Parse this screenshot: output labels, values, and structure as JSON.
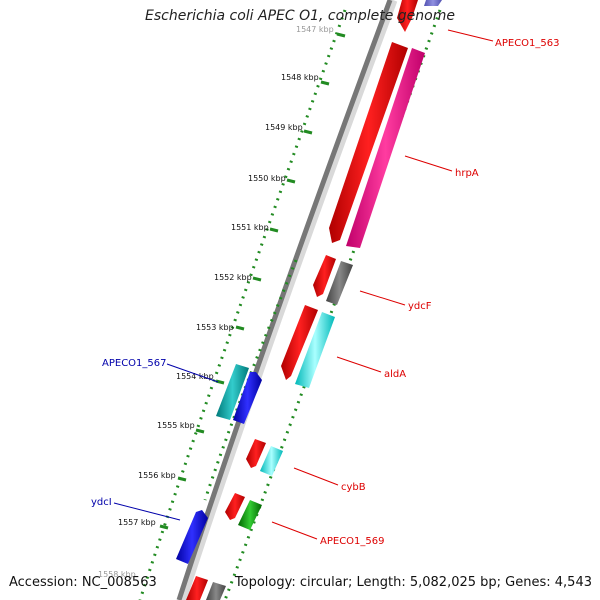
{
  "title": "Escherichia coli APEC O1, complete genome",
  "accession": "Accession: NC_008563",
  "topology": "Topology: circular; Length: 5,082,025 bp; Genes: 4,543",
  "ticks": [
    "1547 kbp",
    "1548 kbp",
    "1549 kbp",
    "1550 kbp",
    "1551 kbp",
    "1552 kbp",
    "1553 kbp",
    "1554 kbp",
    "1555 kbp",
    "1556 kbp",
    "1557 kbp",
    "1558 kbp"
  ],
  "genes": [
    {
      "label": "APECO1_563",
      "color": "#dd0000"
    },
    {
      "label": "hrpA",
      "color": "#dd0000"
    },
    {
      "label": "ydcF",
      "color": "#dd0000"
    },
    {
      "label": "aldA",
      "color": "#dd0000"
    },
    {
      "label": "APECO1_567",
      "color": "#0000aa"
    },
    {
      "label": "cybB",
      "color": "#dd0000"
    },
    {
      "label": "ydcI",
      "color": "#0000aa"
    },
    {
      "label": "APECO1_569",
      "color": "#dd0000"
    }
  ]
}
